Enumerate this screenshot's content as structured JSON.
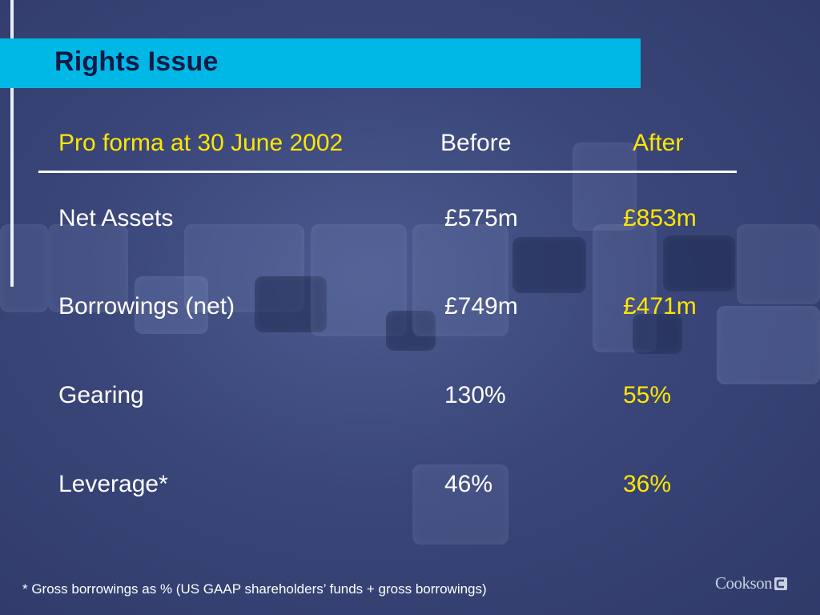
{
  "slide": {
    "title": "Rights Issue",
    "table": {
      "header": {
        "label": "Pro forma at 30 June 2002",
        "before": "Before",
        "after": "After"
      },
      "rows": [
        {
          "label": "Net Assets",
          "before": "£575m",
          "after": "£853m"
        },
        {
          "label": "Borrowings (net)",
          "before": "£749m",
          "after": "£471m"
        },
        {
          "label": "Gearing",
          "before": "130%",
          "after": "55%"
        },
        {
          "label": "Leverage*",
          "before": "46%",
          "after": "36%"
        }
      ]
    },
    "footnote": "* Gross borrowings as % (US GAAP shareholders’ funds + gross borrowings)",
    "logo_text": "Cookson"
  },
  "colors": {
    "background": "#3a4679",
    "title_band": "#00b8e6",
    "title_text": "#101a45",
    "highlight": "#ffe600",
    "text": "#ffffff"
  }
}
